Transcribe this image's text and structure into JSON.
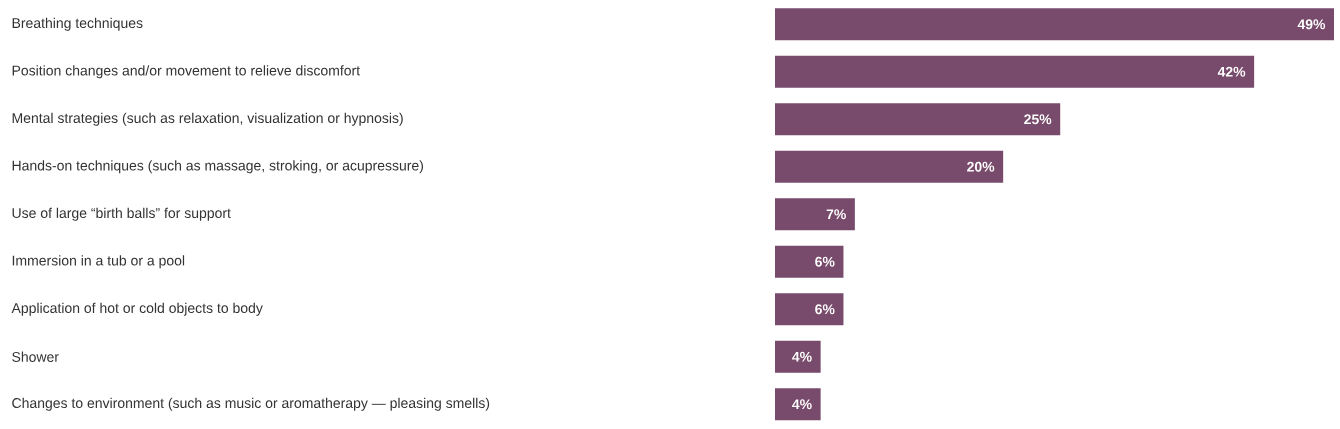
{
  "chart_data": {
    "type": "bar",
    "orientation": "horizontal",
    "categories": [
      "Breathing techniques",
      "Position changes and/or movement to relieve discomfort",
      "Mental strategies (such as relaxation, visualization or hypnosis)",
      "Hands-on techniques (such as massage, stroking, or acupressure)",
      "Use of large “birth balls” for support",
      "Immersion in a tub or a pool",
      "Application of hot or cold objects to body",
      "Shower",
      "Changes to environment (such as music or aromatherapy — pleasing smells)"
    ],
    "values": [
      49,
      42,
      25,
      20,
      7,
      6,
      6,
      4,
      4
    ],
    "value_labels": [
      "49%",
      "42%",
      "25%",
      "20%",
      "7%",
      "6%",
      "6%",
      "4%",
      "4%"
    ],
    "color": "#784a6b"
  }
}
